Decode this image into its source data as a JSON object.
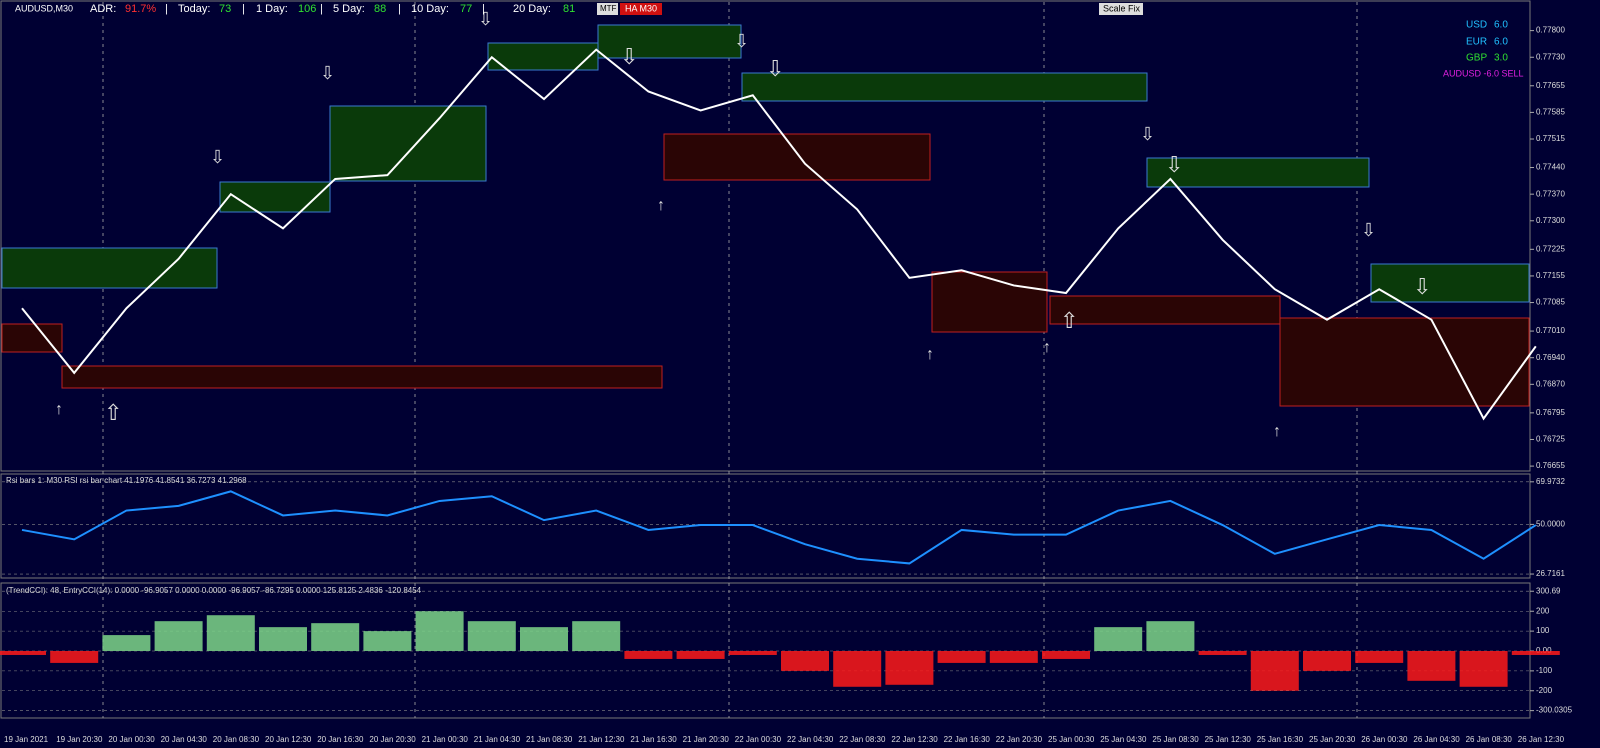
{
  "header": {
    "adr_label": "ADR:",
    "adr": "91.7%",
    "separator": "|",
    "today_label": "Today:",
    "today": 73,
    "day1_label": "1 Day:",
    "day1": 106,
    "day5_label": "5 Day:",
    "day5": 88,
    "day10_label": "10 Day:",
    "day10": 77,
    "day20_label": "20 Day:",
    "day20": 81,
    "mtf": "MTF",
    "ha": "HA M30",
    "scale_fix": "Scale Fix"
  },
  "strength": [
    {
      "currency": "USD",
      "value": "6.0"
    },
    {
      "currency": "EUR",
      "value": "6.0"
    },
    {
      "currency": "GBP",
      "value": "3.0"
    },
    {
      "currency": "AUDUSD -6.0 SELL",
      "value": ""
    }
  ],
  "chart_data": [
    {
      "type": "line",
      "title": "AUDUSD,M30",
      "color": "#ffffff",
      "categories": [
        "19 Jan 2021",
        "19 Jan 20:30",
        "20 Jan 00:30",
        "20 Jan 04:30",
        "20 Jan 08:30",
        "20 Jan 12:30",
        "20 Jan 16:30",
        "20 Jan 20:30",
        "21 Jan 00:30",
        "21 Jan 04:30",
        "21 Jan 08:30",
        "21 Jan 12:30",
        "21 Jan 16:30",
        "21 Jan 20:30",
        "22 Jan 00:30",
        "22 Jan 04:30",
        "22 Jan 08:30",
        "22 Jan 12:30",
        "22 Jan 16:30",
        "22 Jan 20:30",
        "25 Jan 00:30",
        "25 Jan 04:30",
        "25 Jan 08:30",
        "25 Jan 12:30",
        "25 Jan 16:30",
        "25 Jan 20:30",
        "26 Jan 00:30",
        "26 Jan 04:30",
        "26 Jan 08:30",
        "26 Jan 12:30"
      ],
      "values": [
        0.7707,
        0.769,
        0.7707,
        0.772,
        0.7737,
        0.7728,
        0.7741,
        0.7742,
        0.7757,
        0.7773,
        0.7762,
        0.7775,
        0.7764,
        0.7759,
        0.7763,
        0.7745,
        0.7733,
        0.7715,
        0.7717,
        0.7713,
        0.7711,
        0.7728,
        0.7741,
        0.7725,
        0.7712,
        0.7704,
        0.7712,
        0.7704,
        0.7678,
        0.7697
      ],
      "ylim": [
        0.7665,
        0.7787
      ],
      "yticks": [
        {
          "value": 0.778,
          "label": "0.77800"
        },
        {
          "value": 0.7773,
          "label": "0.77730"
        },
        {
          "value": 0.77655,
          "label": "0.77655"
        },
        {
          "value": 0.77585,
          "label": "0.77585"
        },
        {
          "value": 0.77515,
          "label": "0.77515"
        },
        {
          "value": 0.7744,
          "label": "0.77440"
        },
        {
          "value": 0.7737,
          "label": "0.77370"
        },
        {
          "value": 0.773,
          "label": "0.77300"
        },
        {
          "value": 0.77225,
          "label": "0.77225"
        },
        {
          "value": 0.77155,
          "label": "0.77155"
        },
        {
          "value": 0.77085,
          "label": "0.77085"
        },
        {
          "value": 0.7701,
          "label": "0.77010"
        },
        {
          "value": 0.7694,
          "label": "0.76940"
        },
        {
          "value": 0.7687,
          "label": "0.76870"
        },
        {
          "value": 0.76795,
          "label": "0.76795"
        },
        {
          "value": 0.76725,
          "label": "0.76725"
        },
        {
          "value": 0.76655,
          "label": "0.76655"
        }
      ]
    },
    {
      "type": "line",
      "title": "Rsi bars 1: M30 RSI rsi bar chart 41.1976 41.8541 36.7273 41.2968",
      "color": "#1e90ff",
      "values": [
        47.4,
        43.0,
        56.5,
        58.7,
        65.5,
        54.2,
        56.5,
        54.2,
        61.0,
        63.2,
        52.0,
        56.5,
        47.4,
        49.7,
        49.7,
        40.7,
        33.9,
        31.7,
        47.4,
        45.2,
        45.2,
        56.5,
        61.0,
        49.7,
        36.2,
        43.0,
        49.7,
        47.4,
        33.9,
        49.7
      ],
      "ylim": [
        25.8,
        72.7
      ],
      "yticks": [
        69.9732,
        {
          "value": 50,
          "label": "50.0000"
        },
        26.7161
      ]
    },
    {
      "type": "bar",
      "title": "(TrendCCI): 48, EntryCCI(14): 0.0000 -96.9057 0.0000 0.0000 -96.9057 -86.7295 0.0000 125.8125 2.4836 -120.8454",
      "positive_color": "#7ed68a",
      "negative_color": "#ff1a1a",
      "values": [
        -20,
        -60,
        80,
        150,
        180,
        120,
        140,
        100,
        200,
        150,
        120,
        150,
        -40,
        -40,
        -20,
        -100,
        -180,
        -170,
        -60,
        -60,
        -40,
        120,
        150,
        -20,
        -200,
        -100,
        -60,
        -150,
        -180,
        -20
      ],
      "ylim": [
        -327,
        332
      ],
      "yticks": [
        300.69,
        200,
        100,
        {
          "value": 0,
          "label": "0.00"
        },
        -100,
        -200,
        -300.0305
      ]
    }
  ]
}
